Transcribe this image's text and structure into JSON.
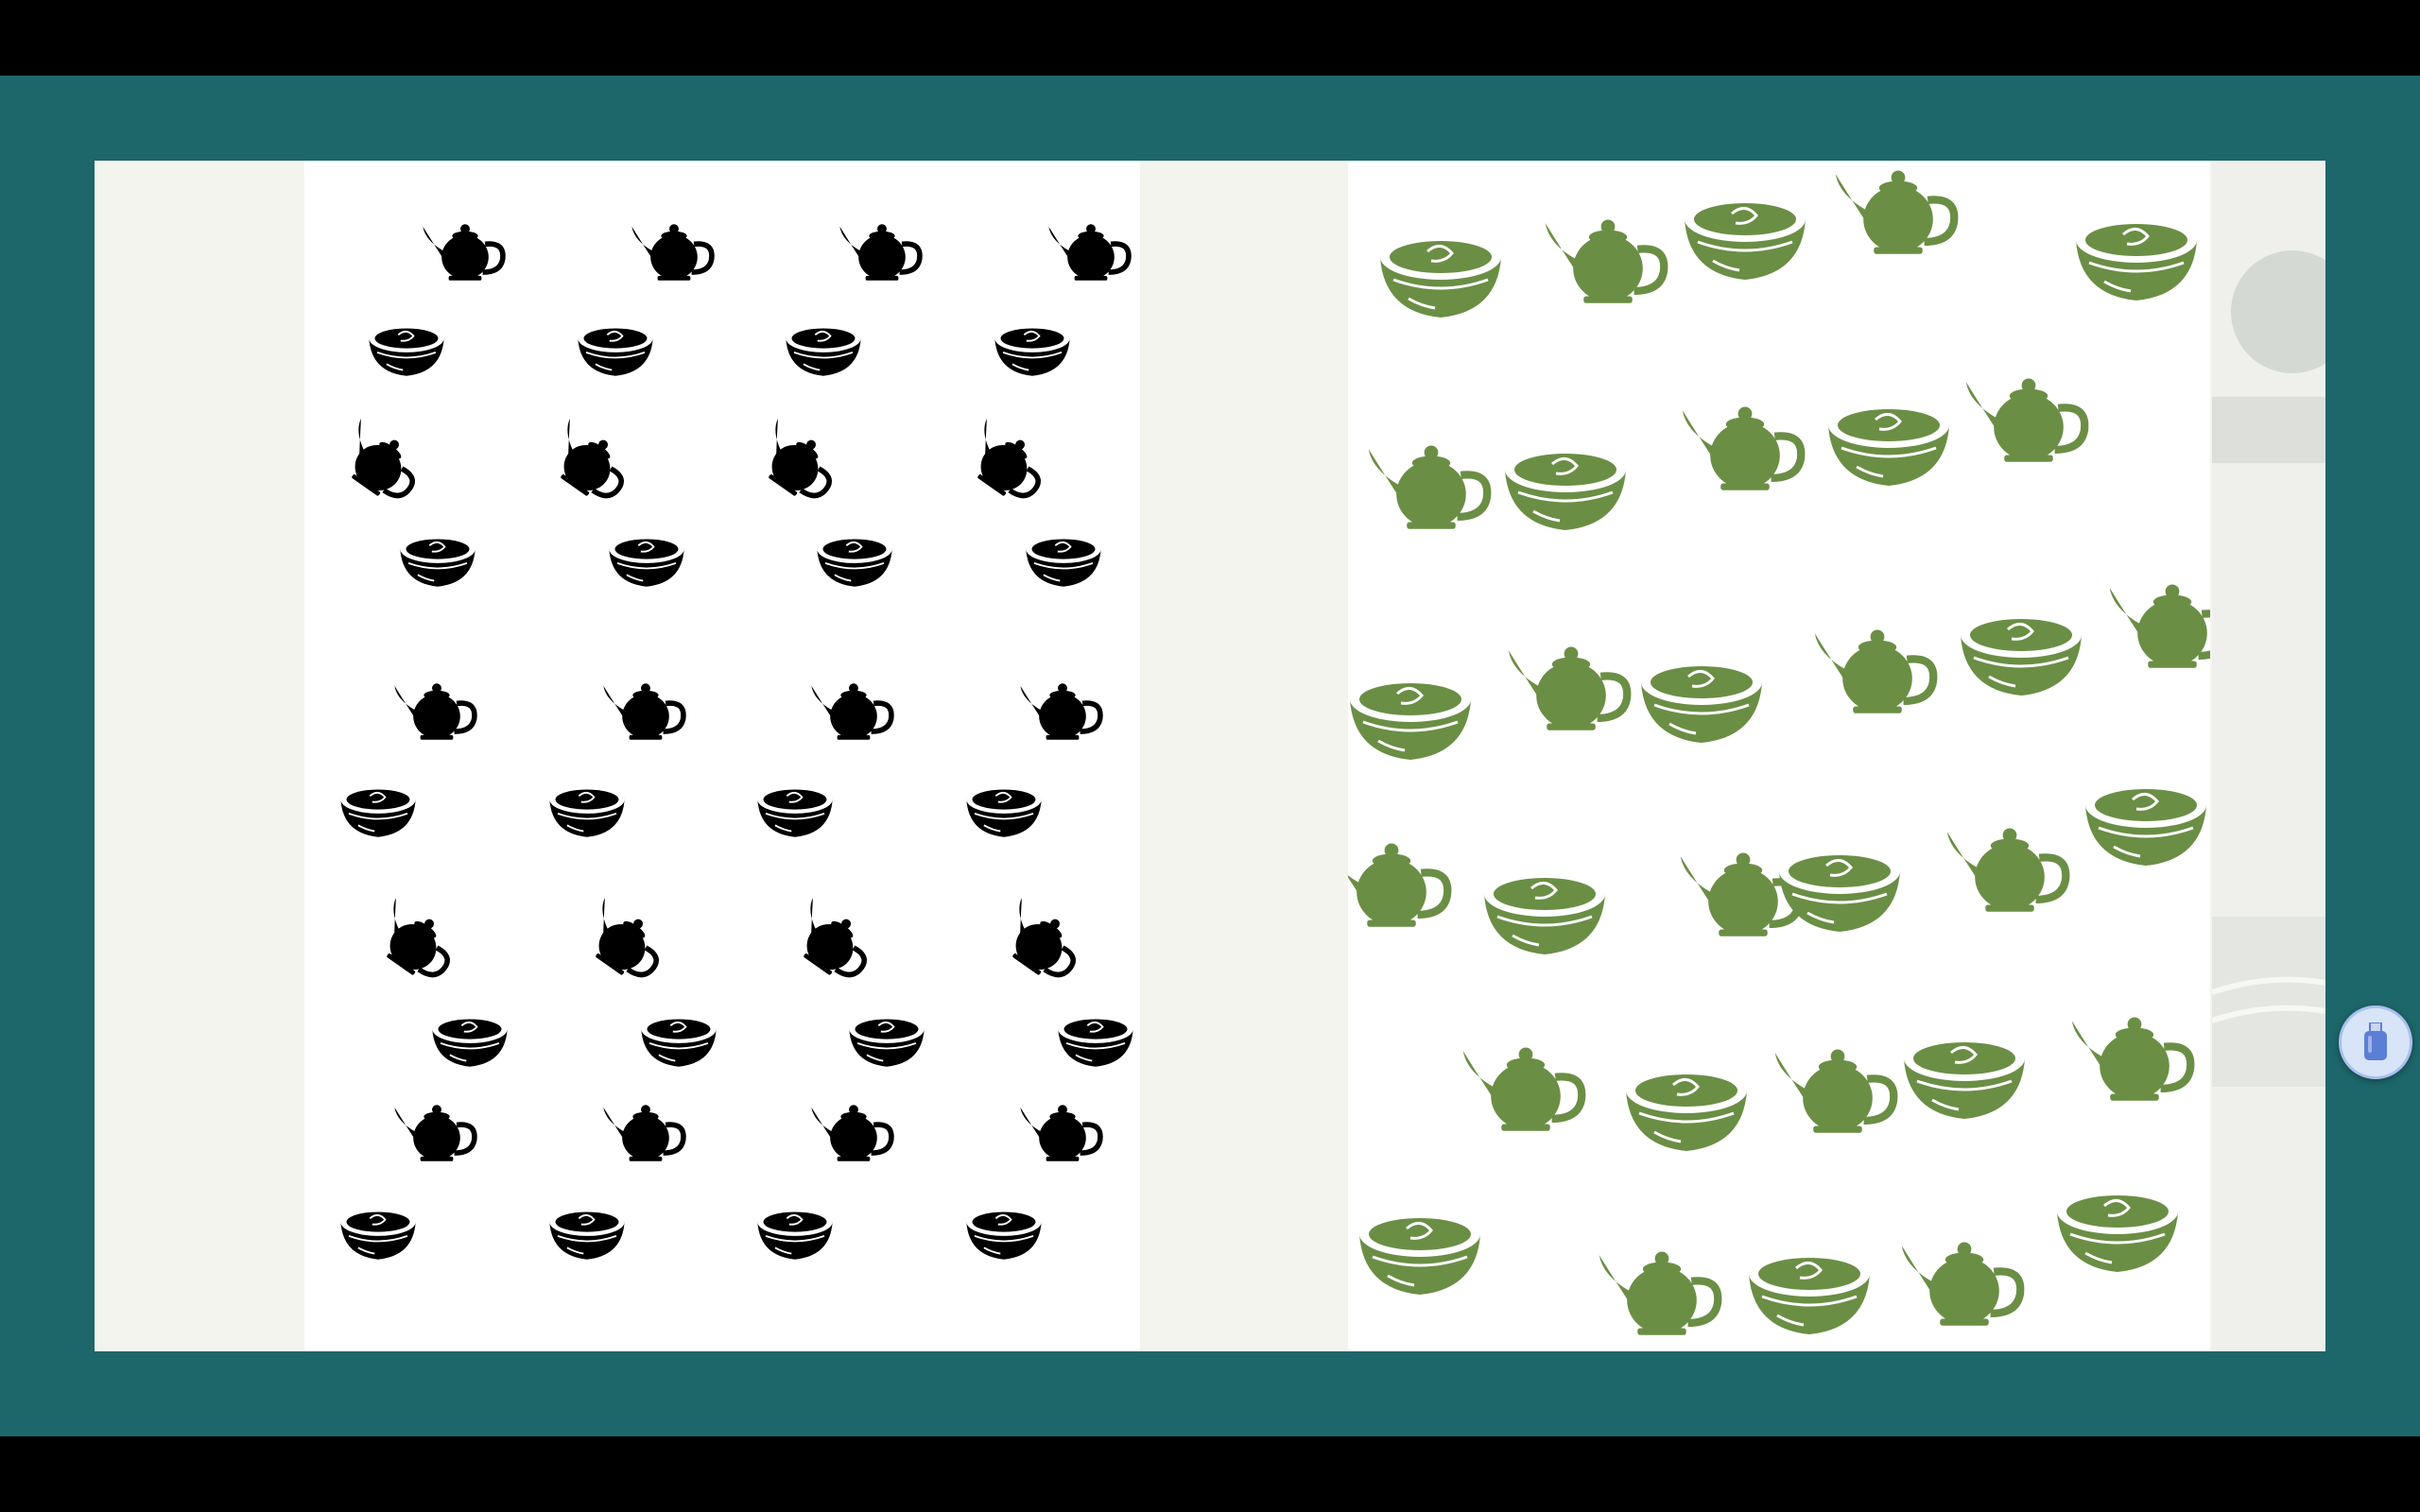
{
  "viewer": {
    "background": "#1d676a",
    "letterbox": "#000000",
    "canvas": "#f4f4ef"
  },
  "panels": [
    {
      "id": "black-tea-pattern",
      "color": "#000000",
      "motif": [
        "teapot-icon",
        "teacup-icon"
      ]
    },
    {
      "id": "green-tea-pattern",
      "color": "#6b8e45",
      "motif": [
        "teapot-icon",
        "teacup-icon"
      ]
    }
  ],
  "overlay": {
    "icon": "usb-drive-icon",
    "accent": "#5c7fd6"
  }
}
